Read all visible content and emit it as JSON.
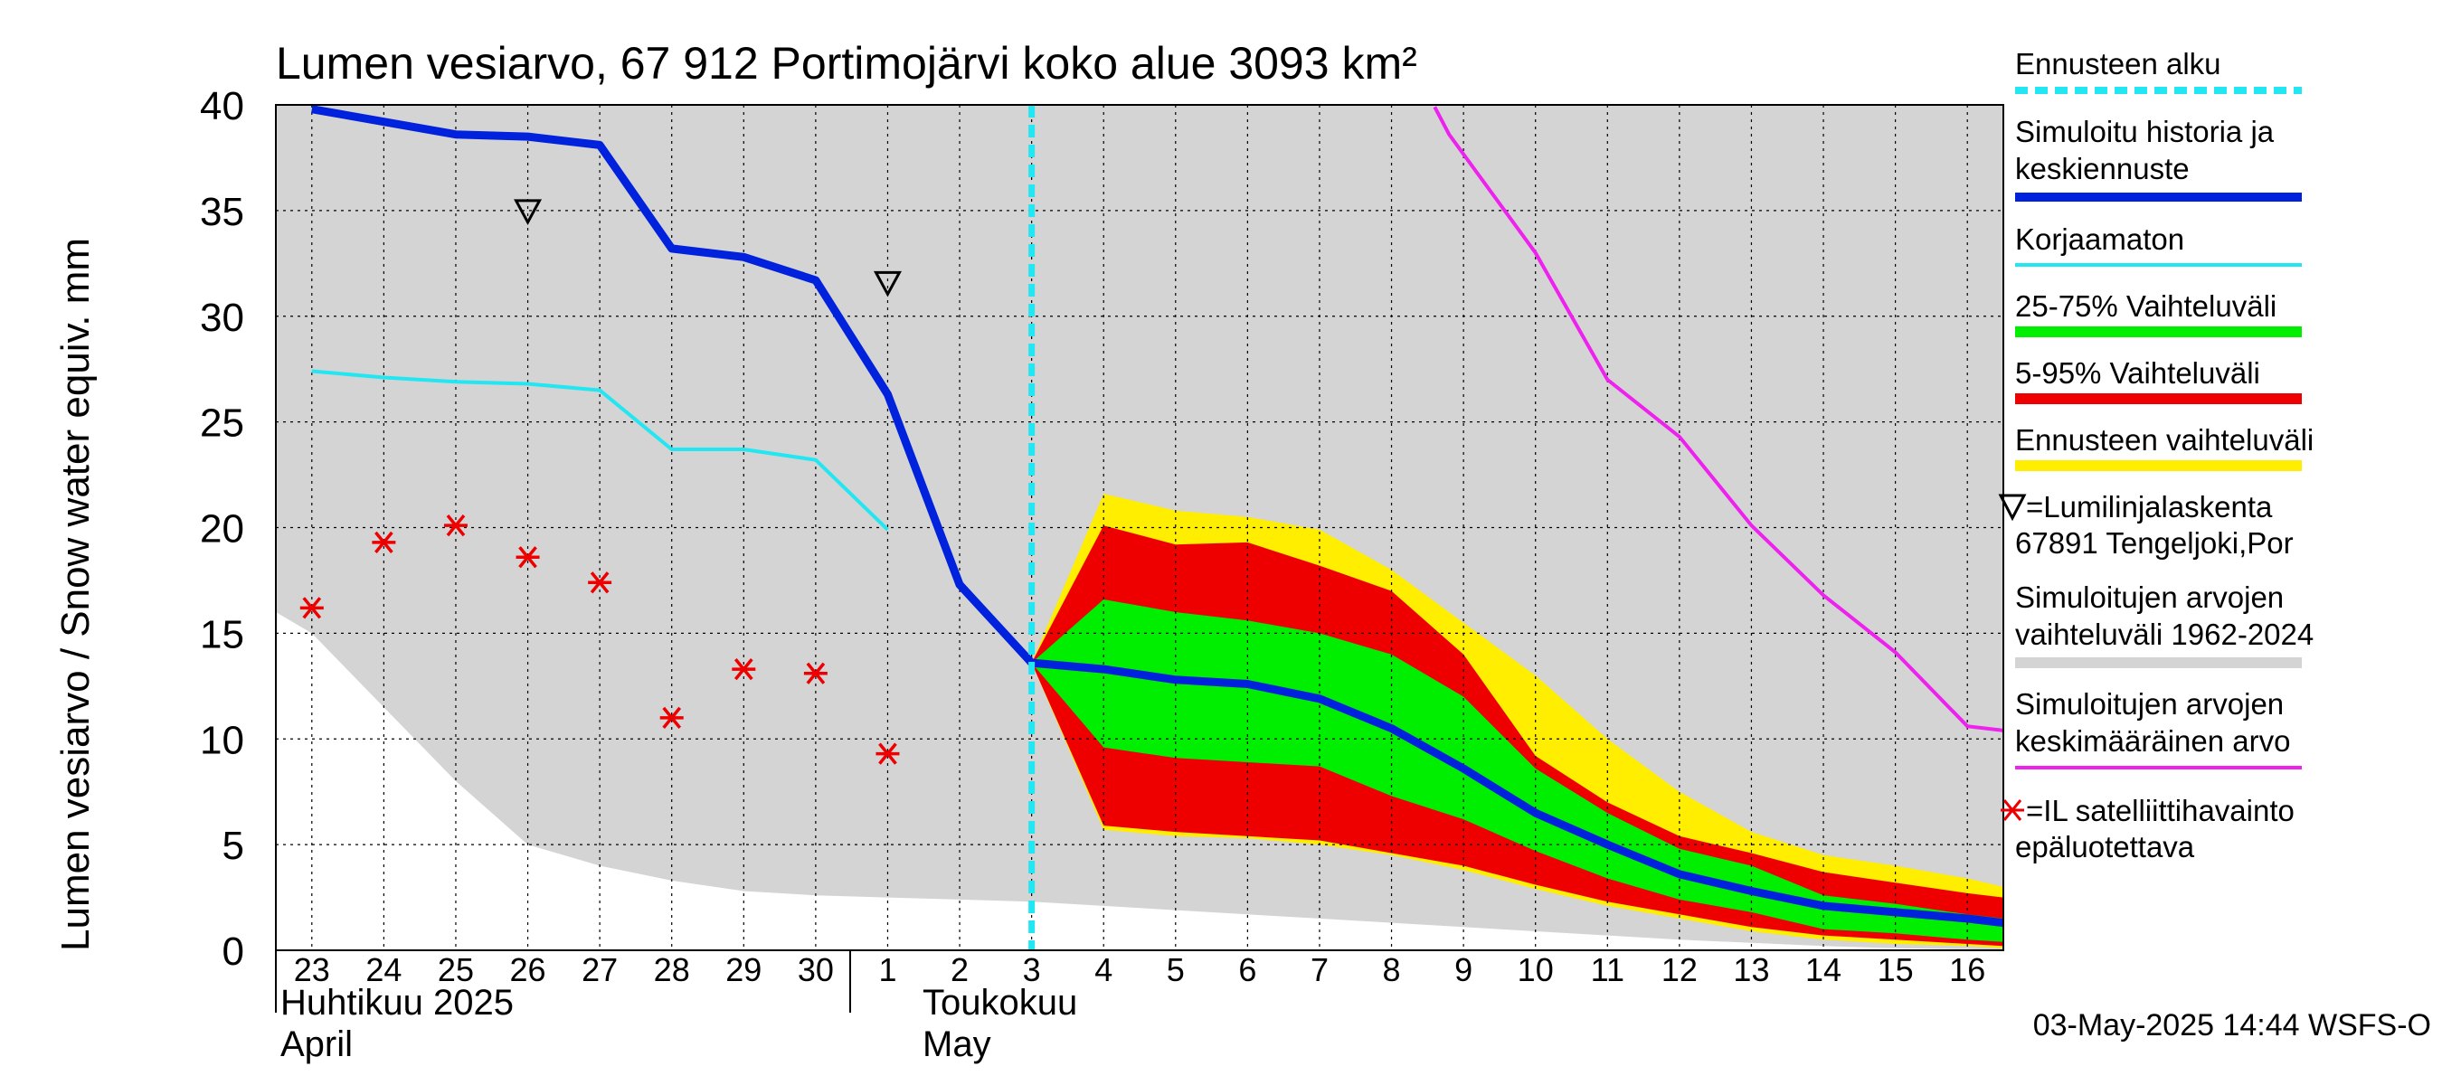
{
  "chart_data": {
    "type": "area",
    "title": "Lumen vesiarvo, 67 912 Portimojärvi koko alue 3093 km²",
    "ylabel": "Lumen vesiarvo / Snow water equiv.    mm",
    "ylim": [
      0,
      40
    ],
    "yticks": [
      0,
      5,
      10,
      15,
      20,
      25,
      30,
      35,
      40
    ],
    "x_day_labels": [
      "23",
      "24",
      "25",
      "26",
      "27",
      "28",
      "29",
      "30",
      "1",
      "2",
      "3",
      "4",
      "5",
      "6",
      "7",
      "8",
      "9",
      "10",
      "11",
      "12",
      "13",
      "14",
      "15",
      "16"
    ],
    "x_range_days": [
      -0.5,
      23.5
    ],
    "month_labels": {
      "april_fi": "Huhtikuu  2025",
      "april_en": "April",
      "may_fi": "Toukokuu",
      "may_en": "May"
    },
    "forecast_start_day": 10.0,
    "footer": "03-May-2025 14:44 WSFS-O",
    "colors": {
      "history_band": "#d4d4d4",
      "median": "#0022dd",
      "uncorrected": "#22e6f2",
      "p25_75": "#00ee00",
      "p5_95": "#ee0000",
      "forecast_range": "#ffee00",
      "mean": "#ee22ee",
      "forecast_line": "#22e6f2",
      "satellite": "#ee0000",
      "grid": "#000000"
    },
    "series": {
      "history_band": {
        "name": "Simuloitujen arvojen vaihteluväli 1962-2024",
        "x": [
          -0.5,
          0,
          1,
          2,
          3,
          4,
          5,
          6,
          7,
          8,
          9,
          10,
          11,
          12,
          13,
          14,
          15,
          16,
          17,
          18,
          19,
          20,
          21,
          22,
          23,
          23.5
        ],
        "upper": [
          40,
          40,
          40,
          40,
          40,
          40,
          40,
          40,
          40,
          40,
          40,
          40,
          40,
          40,
          40,
          40,
          40,
          40,
          40,
          40,
          40,
          40,
          40,
          40,
          40,
          40
        ],
        "lower": [
          16.0,
          15.0,
          11.5,
          8.0,
          5.0,
          4.0,
          3.3,
          2.8,
          2.6,
          2.5,
          2.4,
          2.3,
          2.1,
          1.9,
          1.7,
          1.5,
          1.3,
          1.1,
          0.9,
          0.7,
          0.5,
          0.35,
          0.2,
          0.1,
          0.05,
          0.0
        ]
      },
      "forecast_range": {
        "name": "Ennusteen vaihteluväli",
        "x": [
          10,
          11,
          12,
          13,
          14,
          15,
          16,
          17,
          18,
          19,
          20,
          21,
          22,
          23,
          23.5
        ],
        "upper": [
          13.6,
          21.6,
          20.8,
          20.5,
          19.9,
          18.0,
          15.5,
          13.0,
          10.0,
          7.5,
          5.6,
          4.5,
          4.0,
          3.4,
          3.0
        ],
        "lower": [
          13.6,
          5.7,
          5.4,
          5.3,
          5.0,
          4.5,
          3.8,
          2.9,
          2.1,
          1.5,
          0.9,
          0.5,
          0.3,
          0.2,
          0.1
        ]
      },
      "p5_95": {
        "name": "5-95% Vaihteluväli",
        "x": [
          10,
          11,
          12,
          13,
          14,
          15,
          16,
          17,
          18,
          19,
          20,
          21,
          22,
          23,
          23.5
        ],
        "upper": [
          13.6,
          20.1,
          19.2,
          19.3,
          18.2,
          17.0,
          14.0,
          9.2,
          7.0,
          5.4,
          4.6,
          3.7,
          3.2,
          2.7,
          2.5
        ],
        "lower": [
          13.6,
          5.9,
          5.6,
          5.4,
          5.2,
          4.6,
          4.0,
          3.1,
          2.3,
          1.7,
          1.1,
          0.7,
          0.5,
          0.3,
          0.2
        ]
      },
      "p25_75": {
        "name": "25-75% Vaihteluväli",
        "x": [
          10,
          11,
          12,
          13,
          14,
          15,
          16,
          17,
          18,
          19,
          20,
          21,
          22,
          23,
          23.5
        ],
        "upper": [
          13.6,
          16.6,
          16.0,
          15.6,
          15.0,
          14.0,
          12.0,
          8.6,
          6.5,
          4.8,
          4.0,
          2.6,
          2.2,
          1.7,
          1.5
        ],
        "lower": [
          13.6,
          9.6,
          9.1,
          8.9,
          8.7,
          7.3,
          6.2,
          4.7,
          3.4,
          2.4,
          1.8,
          1.0,
          0.8,
          0.5,
          0.4
        ]
      },
      "median": {
        "name": "Simuloitu historia ja keskiennuste",
        "x": [
          0,
          1,
          2,
          3,
          4,
          5,
          6,
          7,
          8,
          9,
          10,
          11,
          12,
          13,
          14,
          15,
          16,
          17,
          18,
          19,
          20,
          21,
          22,
          23,
          23.5
        ],
        "y": [
          39.8,
          39.2,
          38.6,
          38.5,
          38.1,
          33.2,
          32.8,
          31.7,
          26.3,
          17.3,
          13.6,
          13.3,
          12.8,
          12.6,
          11.9,
          10.5,
          8.6,
          6.5,
          5.0,
          3.6,
          2.8,
          2.1,
          1.8,
          1.5,
          1.3
        ]
      },
      "uncorrected": {
        "name": "Korjaamaton",
        "x": [
          0,
          1,
          2,
          3,
          4,
          5,
          6,
          7,
          8
        ],
        "y": [
          27.4,
          27.1,
          26.9,
          26.8,
          26.5,
          23.7,
          23.7,
          23.2,
          19.9
        ]
      },
      "mean": {
        "name": "Simuloitujen arvojen keskimääräinen arvo",
        "x": [
          15.6,
          15.8,
          17,
          18,
          19,
          20,
          21,
          22,
          23,
          23.5
        ],
        "y": [
          39.9,
          38.6,
          33.0,
          27.0,
          24.3,
          20.1,
          16.8,
          14.1,
          10.6,
          10.4
        ]
      },
      "snow_course": {
        "name": "Lumilinjalaskenta 67891 Tengeljoki,Por",
        "x": [
          3,
          8
        ],
        "y": [
          35.0,
          31.6
        ]
      },
      "satellite": {
        "name": "IL satelliittihavainto epäluotettava",
        "x": [
          0,
          1,
          2,
          3,
          4,
          5,
          6,
          7,
          8
        ],
        "y": [
          16.2,
          19.3,
          20.1,
          18.6,
          17.4,
          11.0,
          13.3,
          13.1,
          9.3
        ]
      }
    },
    "legend": {
      "forecast_start": "Ennusteen alku",
      "median_1": "Simuloitu historia ja",
      "median_2": "keskiennuste",
      "uncorrected": "Korjaamaton",
      "p25_75": "25-75% Vaihteluväli",
      "p5_95": "5-95% Vaihteluväli",
      "forecast_range": "Ennusteen vaihteluväli",
      "snow_course_1": "=Lumilinjalaskenta",
      "snow_course_2": "67891 Tengeljoki,Por",
      "history_band_1": "Simuloitujen arvojen",
      "history_band_2": "vaihteluväli 1962-2024",
      "mean_1": "Simuloitujen arvojen",
      "mean_2": "keskimääräinen arvo",
      "satellite_1": "=IL satelliittihavainto",
      "satellite_2": "epäluotettava"
    }
  }
}
